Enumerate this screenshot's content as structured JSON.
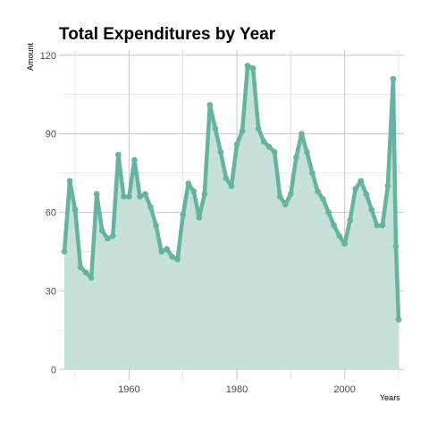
{
  "chart_data": {
    "type": "area",
    "title": "Total Expenditures by Year",
    "xlabel": "Years",
    "ylabel": "Amount",
    "xlim": [
      1947,
      2011
    ],
    "ylim": [
      -4,
      122
    ],
    "x_ticks": [
      1960,
      1980,
      2000
    ],
    "y_ticks": [
      0,
      30,
      60,
      90,
      120
    ],
    "x_tick_labels": [
      "1960",
      "1980",
      "2000"
    ],
    "y_tick_labels": [
      "0",
      "30",
      "60",
      "90",
      "120"
    ],
    "grid": true,
    "legend": "none",
    "colors": {
      "line": "#66b39f",
      "fill": "#c5e1da"
    },
    "series": [
      {
        "x": [
          1948,
          1949,
          1950,
          1951,
          1952,
          1953,
          1954,
          1955,
          1956,
          1957,
          1958,
          1959,
          1960,
          1961,
          1962,
          1963,
          1964,
          1965,
          1966,
          1967,
          1968,
          1969,
          1970,
          1971,
          1972,
          1973,
          1974,
          1975,
          1976,
          1977,
          1978,
          1979,
          1980,
          1981,
          1982,
          1983,
          1984,
          1985,
          1986,
          1987,
          1988,
          1989,
          1990,
          1991,
          1992,
          1993,
          1994,
          1995,
          1996,
          1997,
          1998,
          1999,
          2000,
          2001,
          2002,
          2003,
          2004,
          2005,
          2006,
          2007,
          2008,
          2009,
          2009.5,
          2010
        ],
        "values": [
          45,
          72,
          61,
          39,
          37,
          35,
          67,
          53,
          50,
          51,
          82,
          66,
          66,
          80,
          66,
          67,
          62,
          55,
          45,
          46,
          43,
          42,
          59,
          71,
          68,
          58,
          67,
          101,
          92,
          83,
          73,
          70,
          86,
          91,
          116,
          115,
          92,
          87,
          85,
          83,
          66,
          63,
          67,
          81,
          90,
          83,
          75,
          68,
          65,
          60,
          55,
          51,
          48,
          57,
          69,
          72,
          67,
          61,
          55,
          55,
          70,
          111,
          47,
          19
        ]
      }
    ]
  }
}
